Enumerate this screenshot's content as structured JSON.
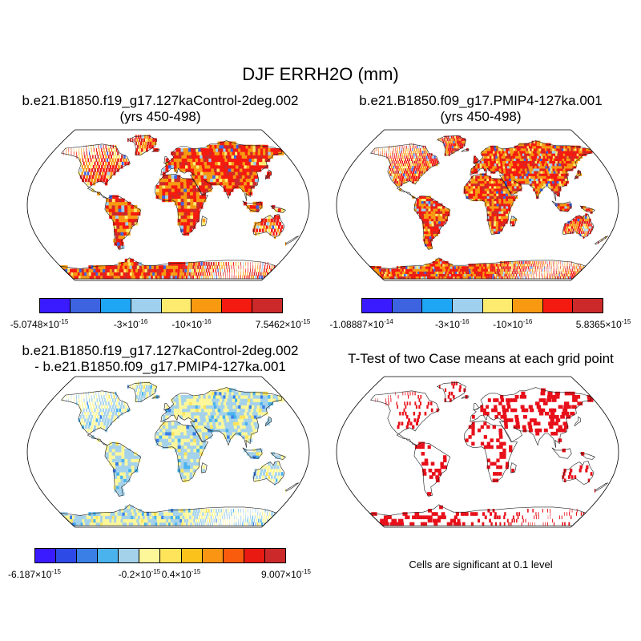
{
  "main_title": "DJF ERRH2O (mm)",
  "panels": [
    {
      "title_line1": "b.e21.B1850.f19_g17.127kaControl-2deg.002",
      "title_line2": "(yrs 450-498)",
      "colorbar_colors": [
        "#3a1aff",
        "#3d63e0",
        "#1ea6f5",
        "#9fd0ee",
        "#fdeb70",
        "#f79a12",
        "#f51a10",
        "#cc2a2a"
      ],
      "ticks": [
        {
          "mantissa": "-5.0748",
          "exp": "-15"
        },
        {
          "mantissa": "-3",
          "exp": "-16"
        },
        {
          "mantissa": "-10",
          "exp": "-16"
        },
        {
          "mantissa": "7.5462",
          "exp": "-15"
        }
      ]
    },
    {
      "title_line1": "b.e21.B1850.f09_g17.PMIP4-127ka.001",
      "title_line2": "(yrs 450-498)",
      "colorbar_colors": [
        "#3a1aff",
        "#3d63e0",
        "#1ea6f5",
        "#9fd0ee",
        "#fdeb70",
        "#f79a12",
        "#f51a10",
        "#cc2a2a"
      ],
      "ticks": [
        {
          "mantissa": "-1.08887",
          "exp": "-14"
        },
        {
          "mantissa": "-3",
          "exp": "-16"
        },
        {
          "mantissa": "-10",
          "exp": "-16"
        },
        {
          "mantissa": "5.8365",
          "exp": "-15"
        }
      ]
    },
    {
      "title_line1": "b.e21.B1850.f19_g17.127kaControl-2deg.002",
      "title_line2": "- b.e21.B1850.f09_g17.PMIP4-127ka.001",
      "colorbar_colors": [
        "#3a1aff",
        "#2e4ae6",
        "#3a7fe6",
        "#4ab3ee",
        "#a4d2ea",
        "#fdf79a",
        "#fde45a",
        "#fcc21c",
        "#f99512",
        "#f95c0c",
        "#e81a12",
        "#cc2a2a"
      ],
      "ticks": [
        {
          "mantissa": "-6.187",
          "exp": "-15"
        },
        {
          "mantissa": "-0.2",
          "exp": "-15"
        },
        {
          "mantissa": "0.4",
          "exp": "-15"
        },
        {
          "mantissa": "9.007",
          "exp": "-15"
        }
      ]
    },
    {
      "title_line1": "T-Test of two Case means at each grid point",
      "note": "Cells are significant at 0.1 level"
    }
  ],
  "colors": {
    "land_map1": "#f25c14",
    "land_map2": "#f25c14",
    "land_diff": "#c9e0e0",
    "significant": "#e8101a"
  }
}
